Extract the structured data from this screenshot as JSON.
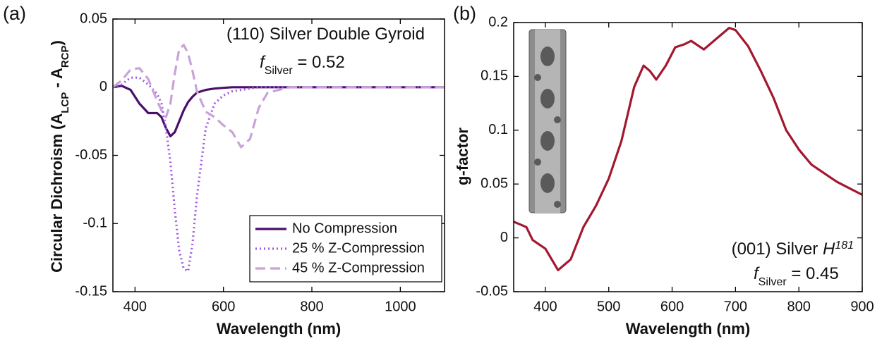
{
  "chart_data": [
    {
      "type": "line",
      "panel_label": "(a)",
      "xlabel": "Wavelength (nm)",
      "ylabel": [
        "Circular Dichroism (A",
        "LCP",
        " - A",
        "RCP",
        ")"
      ],
      "annotations": [
        [
          "(110) Silver Double Gyroid"
        ],
        [
          "f",
          "Silver",
          " = 0.52"
        ]
      ],
      "x": [
        350,
        370,
        390,
        410,
        430,
        450,
        460,
        470,
        480,
        490,
        500,
        510,
        520,
        530,
        540,
        560,
        580,
        600,
        620,
        640,
        660,
        680,
        700,
        750,
        800,
        900,
        1000,
        1100
      ],
      "xlim": [
        350,
        1100
      ],
      "xticks": [
        400,
        600,
        800,
        1000
      ],
      "ylim": [
        -0.15,
        0.05
      ],
      "yticks": [
        -0.15,
        -0.1,
        -0.05,
        0,
        0.05
      ],
      "legend": "lower right",
      "series": [
        {
          "name": "No Compression",
          "color": "#4a0f6b",
          "dash": "solid",
          "values": [
            0,
            0.001,
            -0.002,
            -0.012,
            -0.019,
            -0.019,
            -0.022,
            -0.03,
            -0.036,
            -0.033,
            -0.025,
            -0.017,
            -0.011,
            -0.007,
            -0.004,
            -0.002,
            -0.001,
            -0.0005,
            0,
            0,
            0,
            0,
            0,
            0,
            0,
            0,
            0,
            0
          ]
        },
        {
          "name": "25 % Z-Compression",
          "color": "#a05ce0",
          "dash": "dotted",
          "values": [
            0,
            0.002,
            0.007,
            0.007,
            0.002,
            -0.005,
            -0.012,
            -0.03,
            -0.055,
            -0.09,
            -0.12,
            -0.133,
            -0.135,
            -0.115,
            -0.08,
            -0.03,
            -0.012,
            -0.006,
            -0.003,
            -0.002,
            -0.001,
            0,
            0,
            0,
            0,
            0,
            0,
            0
          ]
        },
        {
          "name": "45 % Z-Compression",
          "color": "#c9a2da",
          "dash": "dashed",
          "values": [
            0,
            0.005,
            0.013,
            0.014,
            0.006,
            -0.01,
            -0.017,
            -0.022,
            -0.012,
            0.01,
            0.028,
            0.031,
            0.025,
            0.012,
            -0.003,
            -0.018,
            -0.022,
            -0.028,
            -0.033,
            -0.044,
            -0.038,
            -0.015,
            -0.004,
            0,
            0,
            0,
            0,
            0
          ]
        }
      ]
    },
    {
      "type": "line",
      "panel_label": "(b)",
      "xlabel": "Wavelength (nm)",
      "ylabel": [
        "g-factor"
      ],
      "annotations": [
        [
          "(001) Silver ",
          "H",
          "181"
        ],
        [
          "f",
          "Silver",
          " = 0.45"
        ]
      ],
      "x": [
        350,
        370,
        380,
        400,
        420,
        440,
        460,
        480,
        500,
        520,
        540,
        555,
        565,
        575,
        590,
        605,
        620,
        630,
        650,
        670,
        690,
        700,
        720,
        740,
        760,
        780,
        800,
        820,
        840,
        860,
        880,
        900
      ],
      "xlim": [
        350,
        900
      ],
      "xticks": [
        400,
        500,
        600,
        700,
        800,
        900
      ],
      "ylim": [
        -0.05,
        0.2
      ],
      "yticks": [
        -0.05,
        0,
        0.05,
        0.1,
        0.15,
        0.2
      ],
      "series": [
        {
          "color": "#a3172f",
          "dash": "solid",
          "values": [
            0.015,
            0.01,
            -0.002,
            -0.01,
            -0.03,
            -0.02,
            0.01,
            0.03,
            0.055,
            0.09,
            0.14,
            0.16,
            0.155,
            0.147,
            0.16,
            0.177,
            0.18,
            0.183,
            0.175,
            0.185,
            0.195,
            0.193,
            0.178,
            0.155,
            0.13,
            0.1,
            0.082,
            0.068,
            0.06,
            0.052,
            0.046,
            0.04
          ]
        }
      ]
    }
  ]
}
